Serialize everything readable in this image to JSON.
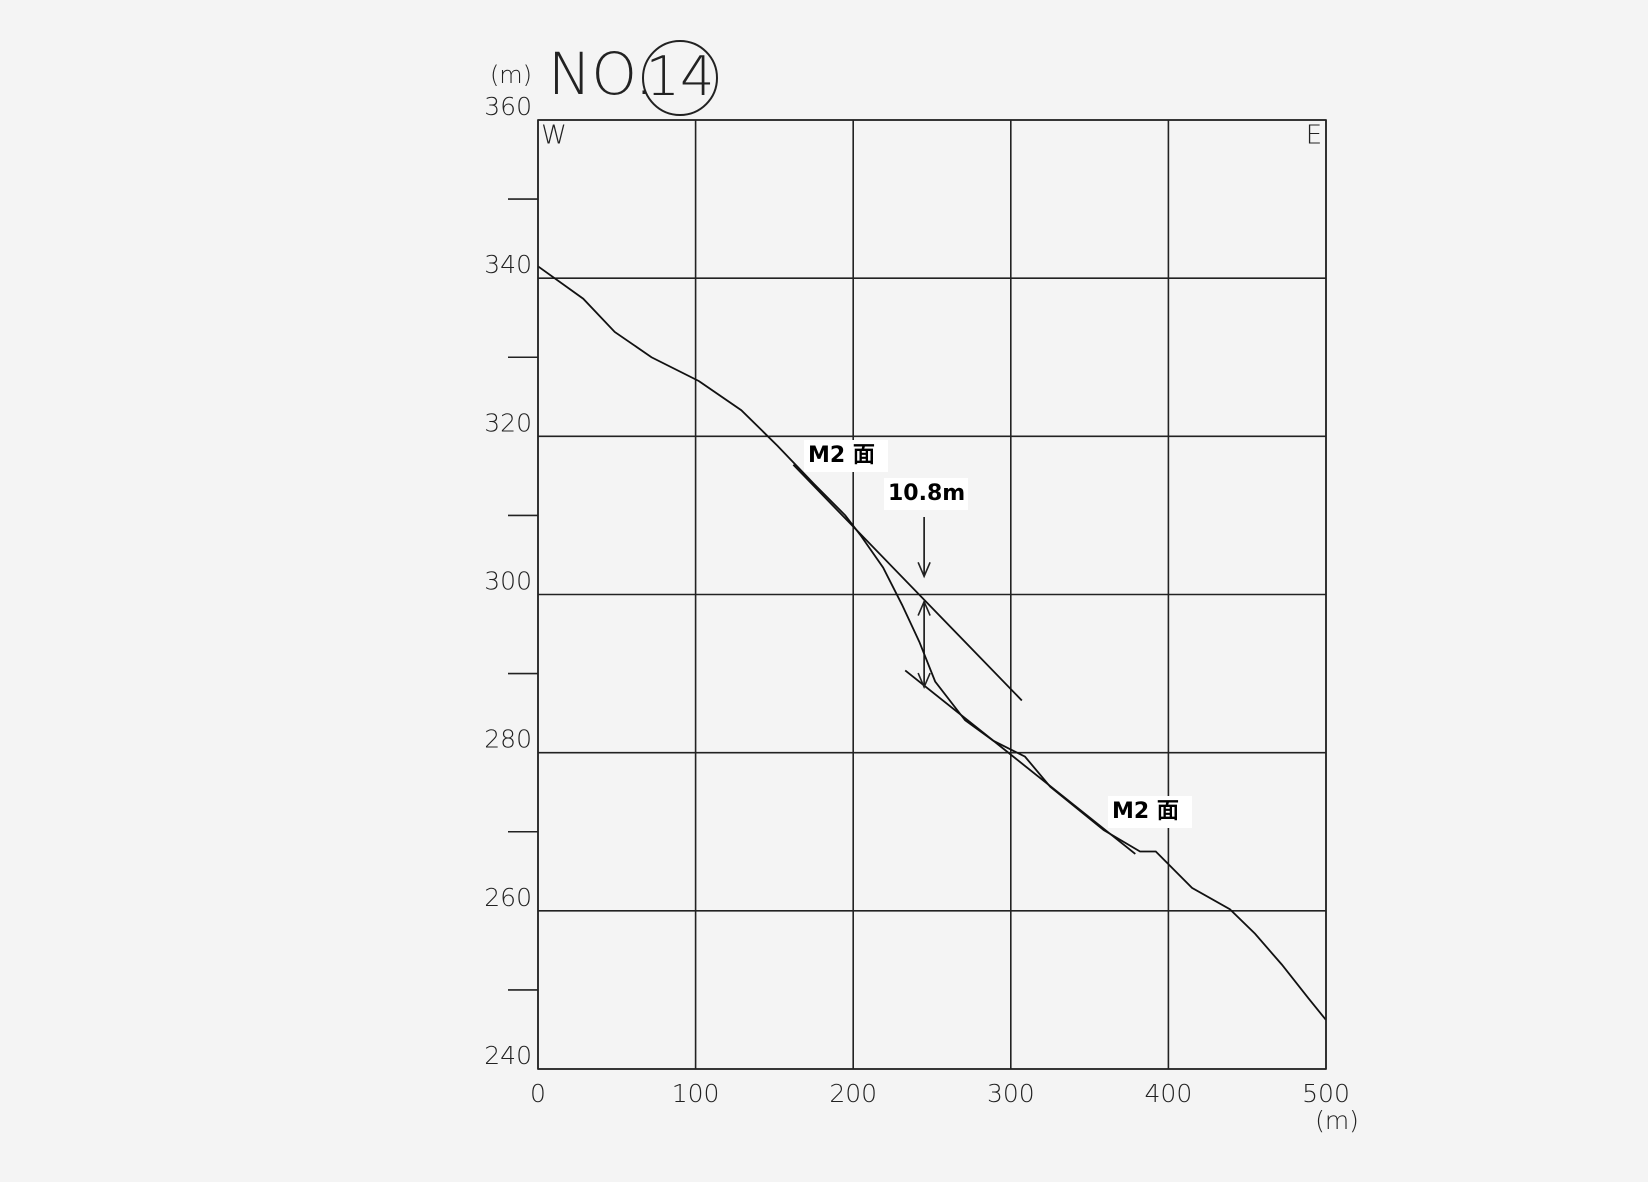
{
  "chart_data": {
    "type": "line",
    "title": "NO.",
    "title_number": "14",
    "y_unit": "(m)",
    "x_unit": "(m)",
    "left_label": "W",
    "right_label": "E",
    "x": [
      0,
      28.7,
      48.7,
      72,
      102,
      129,
      152,
      175,
      195,
      205,
      219,
      231,
      242,
      252,
      271,
      289,
      309,
      325,
      359,
      382,
      392,
      415,
      439,
      455,
      472,
      489,
      500
    ],
    "series": [
      {
        "color": "#111111",
        "values": [
          341.5,
          337.4,
          333.2,
          330,
          327,
          323.3,
          318.8,
          314,
          310,
          307.4,
          303.4,
          298.7,
          294,
          289,
          284.1,
          281.5,
          279.5,
          275.7,
          270.2,
          267.5,
          267.5,
          262.9,
          260.2,
          257.1,
          253.2,
          248.9,
          246.2
        ]
      }
    ],
    "tangent_lines": [
      {
        "x": [
          162,
          307
        ],
        "y": [
          316.4,
          286.6
        ]
      },
      {
        "x": [
          233,
          379
        ],
        "y": [
          290.4,
          267.2
        ]
      }
    ],
    "dimension": {
      "x": 245,
      "y": [
        299.1,
        288.3
      ]
    },
    "leader": {
      "x": 245,
      "y": [
        309.8,
        302.3
      ]
    },
    "annotations": [
      "M2 面",
      "10.8m",
      "M2 面"
    ],
    "xlim": [
      0,
      500
    ],
    "ylim": [
      240,
      360
    ],
    "xticks": [
      0,
      100,
      200,
      300,
      400,
      500
    ],
    "yticks": [
      240,
      260,
      280,
      300,
      320,
      340,
      360
    ],
    "yminor_ticks": [
      250,
      270,
      290,
      310,
      330,
      350
    ],
    "grid": true
  }
}
